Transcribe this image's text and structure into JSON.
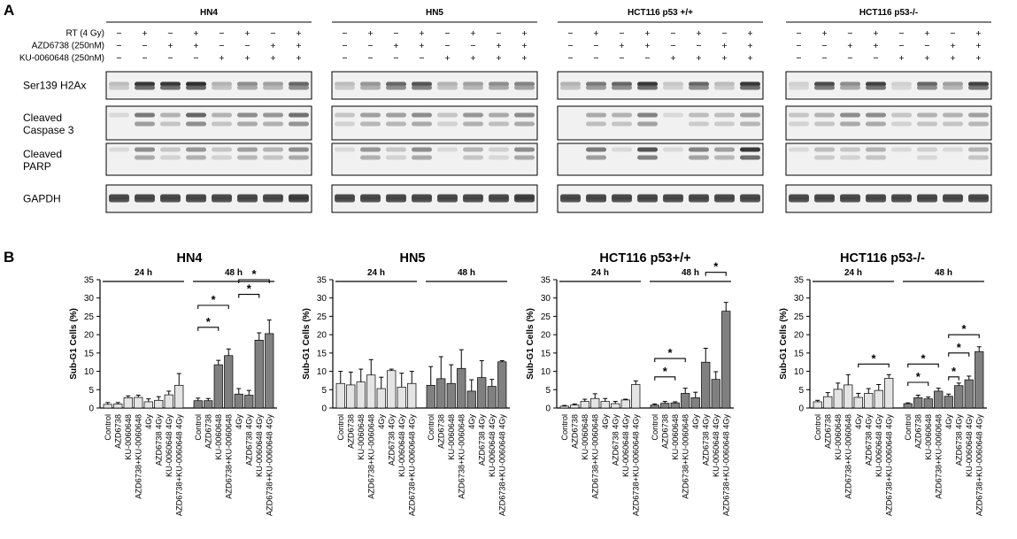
{
  "panel_labels": {
    "a": "A",
    "b": "B"
  },
  "conditions": {
    "rows": [
      {
        "label": "RT (4 Gy)",
        "signs": [
          "−",
          "+",
          "−",
          "+",
          "−",
          "+",
          "−",
          "+"
        ]
      },
      {
        "label": "AZD6738 (250nM)",
        "signs": [
          "−",
          "−",
          "+",
          "+",
          "−",
          "−",
          "+",
          "+"
        ]
      },
      {
        "label": "KU-0060648 (250nM)",
        "signs": [
          "−",
          "−",
          "−",
          "−",
          "+",
          "+",
          "+",
          "+"
        ]
      }
    ]
  },
  "blot_groups": [
    "HN4",
    "HN5",
    "HCT116 p53 +/+",
    "HCT116 p53-/-"
  ],
  "blot_rows": [
    {
      "line1": "Ser139 H2Ax",
      "line2": ""
    },
    {
      "line1": "Cleaved",
      "line2": "Caspase 3"
    },
    {
      "line1": "Cleaved",
      "line2": "PARP"
    },
    {
      "line1": "GAPDH",
      "line2": ""
    }
  ],
  "blot_intensity": [
    [
      [
        0.25,
        0.95,
        0.95,
        1.0,
        0.3,
        0.5,
        0.4,
        0.7
      ],
      [
        0.25,
        0.45,
        0.7,
        0.8,
        0.3,
        0.4,
        0.5,
        0.55
      ],
      [
        0.3,
        0.6,
        0.7,
        0.95,
        0.2,
        0.7,
        0.25,
        0.95
      ],
      [
        0.15,
        0.85,
        0.5,
        0.9,
        0.15,
        0.7,
        0.4,
        0.9
      ]
    ],
    [
      [
        0.1,
        0.6,
        0.3,
        0.7,
        0.3,
        0.5,
        0.45,
        0.65
      ],
      [
        0.2,
        0.4,
        0.4,
        0.5,
        0.2,
        0.45,
        0.35,
        0.5
      ],
      [
        0.05,
        0.35,
        0.3,
        0.55,
        0.1,
        0.25,
        0.25,
        0.4
      ],
      [
        0.2,
        0.3,
        0.5,
        0.5,
        0.2,
        0.3,
        0.3,
        0.4
      ]
    ],
    [
      [
        0.1,
        0.5,
        0.2,
        0.45,
        0.2,
        0.4,
        0.3,
        0.5
      ],
      [
        0.1,
        0.45,
        0.2,
        0.5,
        0.1,
        0.3,
        0.15,
        0.5
      ],
      [
        0.05,
        0.6,
        0.1,
        0.8,
        0.1,
        0.55,
        0.4,
        0.95
      ],
      [
        0.1,
        0.25,
        0.2,
        0.3,
        0.1,
        0.15,
        0.1,
        0.3
      ]
    ],
    [
      [
        0.85,
        0.85,
        0.85,
        0.85,
        0.85,
        0.85,
        0.85,
        0.9
      ],
      [
        0.85,
        0.85,
        0.85,
        0.85,
        0.85,
        0.85,
        0.85,
        0.9
      ],
      [
        0.85,
        0.85,
        0.85,
        0.85,
        0.85,
        0.85,
        0.85,
        0.85
      ],
      [
        0.85,
        0.85,
        0.85,
        0.85,
        0.85,
        0.85,
        0.85,
        0.85
      ]
    ]
  ],
  "chart_common": {
    "y_ticks": [
      0,
      5,
      10,
      15,
      20,
      25,
      30,
      35
    ],
    "ylim": [
      0,
      35
    ],
    "ylabel": "Sub-G1 Cells (%)",
    "categories": [
      "Control",
      "AZD6738",
      "KU-0060648",
      "AZD6738+KU-0060648",
      "4Gy",
      "AZD6738 4Gy",
      "KU-0060648 4Gy",
      "AZD6738+KU-0060648 4Gy"
    ],
    "group_labels": [
      "24 h",
      "48 h"
    ],
    "colors": {
      "24h": "#e4e4e4",
      "48h": "#808080"
    }
  },
  "chart_data": [
    {
      "type": "bar",
      "title": "HN4",
      "series": [
        {
          "values": [
            1.0,
            1.1,
            2.8,
            2.9,
            1.7,
            2.1,
            3.6,
            6.2
          ],
          "errors": [
            0.5,
            0.4,
            0.5,
            0.6,
            0.8,
            1.0,
            1.0,
            3.2
          ]
        },
        {
          "values": [
            2.0,
            2.0,
            11.8,
            14.3,
            3.8,
            3.5,
            18.5,
            20.3
          ],
          "errors": [
            0.7,
            0.6,
            1.2,
            1.8,
            1.5,
            1.3,
            2.0,
            3.7
          ]
        }
      ],
      "significance": [
        {
          "g": 1,
          "a": 0,
          "b": 2,
          "y": 22
        },
        {
          "g": 1,
          "a": 0,
          "b": 3,
          "y": 28
        },
        {
          "g": 1,
          "a": 4,
          "b": 6,
          "y": 31
        },
        {
          "g": 1,
          "a": 4,
          "b": 7,
          "y": 35
        }
      ],
      "stars": [
        "*",
        "*",
        "*",
        "*"
      ]
    },
    {
      "type": "bar",
      "title": "HN5",
      "series": [
        {
          "values": [
            6.7,
            6.3,
            7.1,
            9.0,
            5.3,
            10.2,
            5.7,
            6.7
          ],
          "errors": [
            3.3,
            3.5,
            3.5,
            4.2,
            3.1,
            0.4,
            3.8,
            3.3
          ]
        },
        {
          "values": [
            6.2,
            8.0,
            6.7,
            10.8,
            4.6,
            8.3,
            5.9,
            12.6
          ],
          "errors": [
            5.1,
            6.0,
            5.1,
            5.1,
            3.1,
            4.6,
            1.9,
            0.3
          ]
        }
      ],
      "significance": [],
      "stars": []
    },
    {
      "type": "bar",
      "title": "HCT116 p53+/+",
      "series": [
        {
          "values": [
            0.5,
            0.8,
            1.8,
            2.6,
            1.8,
            1.2,
            2.2,
            6.4
          ],
          "errors": [
            0.2,
            0.3,
            0.6,
            1.3,
            0.8,
            0.6,
            0.2,
            1.0
          ]
        },
        {
          "values": [
            0.8,
            1.3,
            1.4,
            4.0,
            2.8,
            12.5,
            7.8,
            26.4
          ],
          "errors": [
            0.3,
            0.5,
            0.3,
            1.4,
            1.5,
            3.8,
            2.1,
            2.4
          ]
        }
      ],
      "significance": [
        {
          "g": 1,
          "a": 0,
          "b": 2,
          "y": 8.5
        },
        {
          "g": 1,
          "a": 0,
          "b": 3,
          "y": 13.5
        },
        {
          "g": 1,
          "a": 5,
          "b": 7,
          "y": 37
        }
      ],
      "stars": [
        "*",
        "*",
        "*"
      ]
    },
    {
      "type": "bar",
      "title": "HCT116 p53-/-",
      "series": [
        {
          "values": [
            1.7,
            3.1,
            5.1,
            6.3,
            2.9,
            4.0,
            4.8,
            8.1
          ],
          "errors": [
            0.4,
            1.1,
            1.7,
            2.8,
            1.1,
            1.3,
            1.6,
            1.0
          ]
        },
        {
          "values": [
            1.2,
            2.8,
            2.5,
            4.6,
            3.2,
            6.1,
            7.7,
            15.4
          ],
          "errors": [
            0.2,
            0.7,
            0.5,
            0.8,
            0.6,
            0.7,
            1.0,
            1.3
          ]
        }
      ],
      "significance": [
        {
          "g": 0,
          "a": 4,
          "b": 7,
          "y": 12
        },
        {
          "g": 1,
          "a": 0,
          "b": 2,
          "y": 7
        },
        {
          "g": 1,
          "a": 0,
          "b": 3,
          "y": 12
        },
        {
          "g": 1,
          "a": 4,
          "b": 5,
          "y": 8.5
        },
        {
          "g": 1,
          "a": 4,
          "b": 6,
          "y": 15
        },
        {
          "g": 1,
          "a": 4,
          "b": 7,
          "y": 20
        }
      ],
      "stars": [
        "*",
        "*",
        "*",
        "*",
        "*",
        "*"
      ]
    }
  ]
}
